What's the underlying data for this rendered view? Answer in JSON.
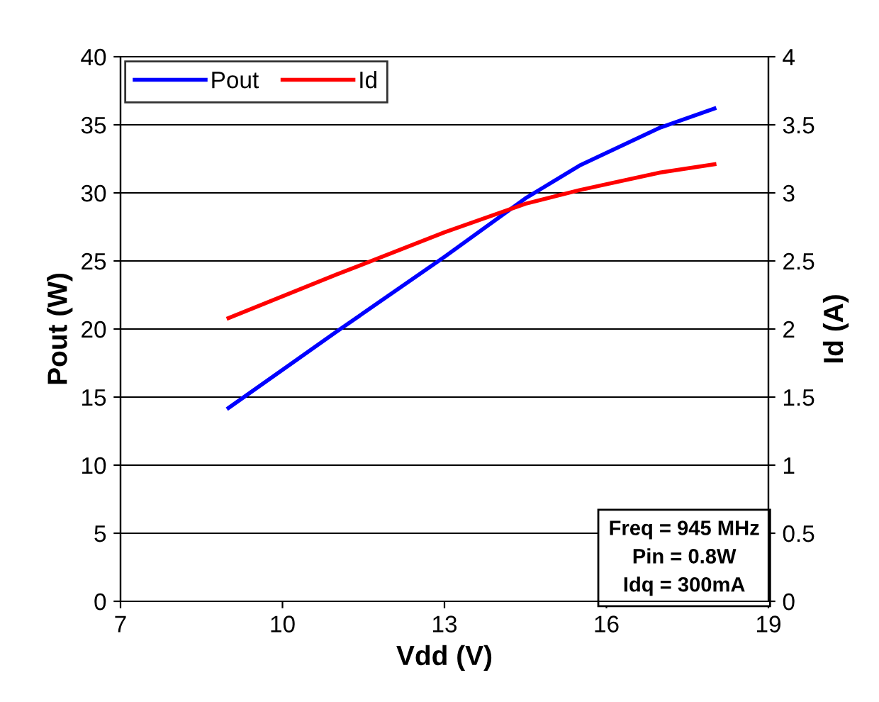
{
  "chart_data": {
    "type": "line",
    "xlabel": "Vdd (V)",
    "ylabel": "Pout (W)",
    "y2label": "Id (A)",
    "x": [
      9,
      11,
      13,
      14.5,
      15.5,
      17,
      18
    ],
    "series": [
      {
        "name": "Pout",
        "color": "#0000ff",
        "values": [
          14.2,
          19.8,
          25.3,
          29.6,
          32.0,
          34.8,
          36.2
        ]
      },
      {
        "name": "Id",
        "color": "#ff0000",
        "axis": "y2",
        "values": [
          2.08,
          2.4,
          2.71,
          2.92,
          3.02,
          3.15,
          3.21
        ]
      }
    ],
    "xlim": [
      7,
      19
    ],
    "xticks": [
      7,
      10,
      13,
      16,
      19
    ],
    "ylim": [
      0,
      40
    ],
    "yticks": [
      0,
      5,
      10,
      15,
      20,
      25,
      30,
      35,
      40
    ],
    "y2lim": [
      0,
      4
    ],
    "y2ticks": [
      0,
      0.5,
      1,
      1.5,
      2,
      2.5,
      3,
      3.5,
      4
    ],
    "grid": "y",
    "legend": "top left",
    "marker": "none",
    "line_style": "solid",
    "annotations": [
      "Freq = 945 MHz\nPin = 0.8W\nIdq = 300mA"
    ]
  }
}
